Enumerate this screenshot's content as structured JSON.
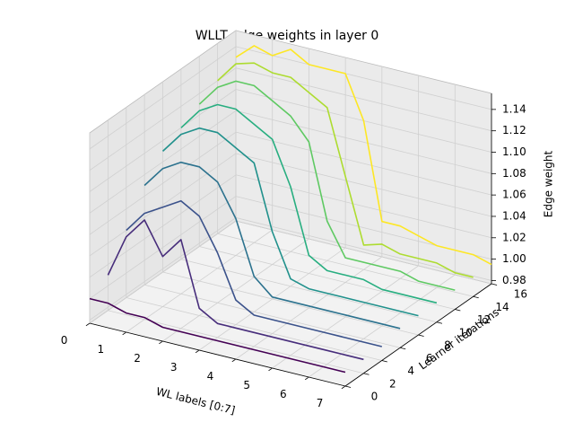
{
  "chart_data": {
    "type": "line3d",
    "title": "WLLT edge weights in layer 0",
    "xlabel": "WL labels [0:7]",
    "ylabel": "Learner iterations",
    "zlabel": "Edge weight",
    "x": [
      0,
      0.5,
      1,
      1.5,
      2,
      2.5,
      3,
      3.5,
      4,
      4.5,
      5,
      5.5,
      6,
      6.5,
      7
    ],
    "series": [
      {
        "y": 0,
        "color": "#440154",
        "values": [
          1.0,
          1.0,
          0.995,
          0.995,
          0.99,
          0.99,
          0.99,
          0.99,
          0.99,
          0.99,
          0.99,
          0.99,
          0.99,
          0.99,
          0.99
        ]
      },
      {
        "y": 2,
        "color": "#472d7b",
        "values": [
          1.01,
          1.05,
          1.07,
          1.04,
          1.06,
          1.0,
          0.99,
          0.99,
          0.99,
          0.99,
          0.99,
          0.99,
          0.99,
          0.99,
          0.99
        ]
      },
      {
        "y": 4,
        "color": "#3b528b",
        "values": [
          1.04,
          1.06,
          1.07,
          1.08,
          1.07,
          1.04,
          1.0,
          0.99,
          0.99,
          0.99,
          0.99,
          0.99,
          0.99,
          0.99,
          0.99
        ]
      },
      {
        "y": 6,
        "color": "#2c728e",
        "values": [
          1.07,
          1.09,
          1.1,
          1.1,
          1.09,
          1.06,
          1.01,
          0.995,
          0.995,
          0.995,
          0.995,
          0.995,
          0.995,
          0.995,
          0.995
        ]
      },
      {
        "y": 8,
        "color": "#21918c",
        "values": [
          1.09,
          1.11,
          1.12,
          1.12,
          1.11,
          1.1,
          1.04,
          1.0,
          0.995,
          0.995,
          0.995,
          0.995,
          0.995,
          0.995,
          0.995
        ]
      },
      {
        "y": 10,
        "color": "#28ae80",
        "values": [
          1.1,
          1.12,
          1.13,
          1.13,
          1.12,
          1.11,
          1.07,
          1.01,
          1.0,
          1.0,
          1.0,
          0.995,
          0.995,
          0.995,
          0.995
        ]
      },
      {
        "y": 12,
        "color": "#5ec962",
        "values": [
          1.11,
          1.13,
          1.14,
          1.14,
          1.13,
          1.12,
          1.1,
          1.03,
          1.0,
          1.0,
          1.0,
          1.0,
          0.995,
          0.995,
          0.995
        ]
      },
      {
        "y": 14,
        "color": "#addc30",
        "values": [
          1.12,
          1.14,
          1.145,
          1.14,
          1.14,
          1.13,
          1.12,
          1.06,
          1.0,
          1.005,
          1.0,
          1.0,
          1.0,
          0.995,
          0.995
        ]
      },
      {
        "y": 16,
        "color": "#fde725",
        "values": [
          1.13,
          1.145,
          1.14,
          1.15,
          1.14,
          1.14,
          1.14,
          1.1,
          1.01,
          1.01,
          1.005,
          1.0,
          1.0,
          1.0,
          0.995
        ]
      }
    ],
    "xlim": [
      0,
      7
    ],
    "ylim": [
      0,
      16
    ],
    "zlim": [
      0.977,
      1.155
    ],
    "xticks": [
      0,
      1,
      2,
      3,
      4,
      5,
      6,
      7
    ],
    "yticks": [
      0,
      2,
      4,
      6,
      8,
      10,
      12,
      14,
      16
    ],
    "zticks": [
      0.98,
      {
        "value": 1,
        "label": "1.00"
      },
      1.02,
      1.04,
      1.06,
      1.08,
      {
        "value": 1.1,
        "label": "1.10"
      },
      1.12,
      1.14
    ],
    "grid": true
  }
}
